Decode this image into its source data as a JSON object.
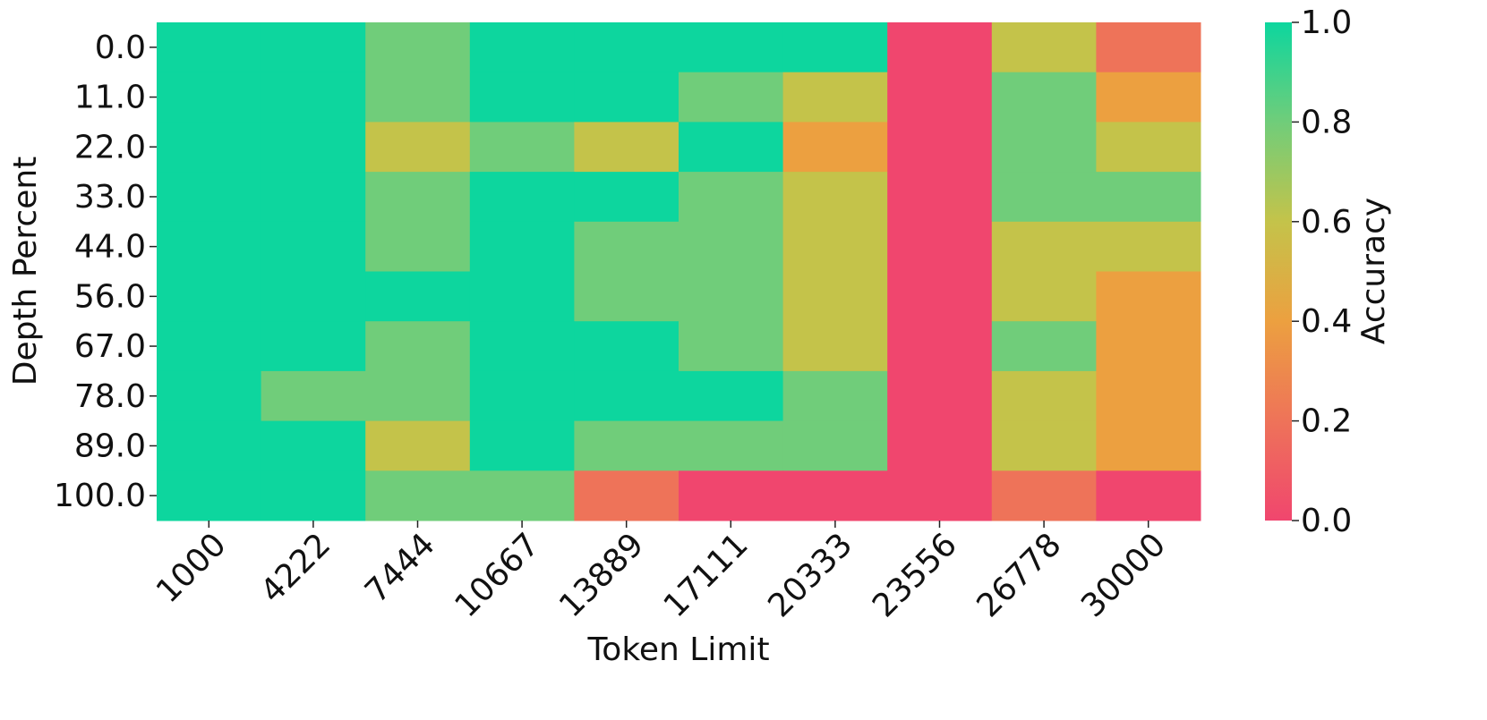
{
  "chart_data": {
    "type": "heatmap",
    "xlabel": "Token Limit",
    "ylabel": "Depth Percent",
    "colorbar_label": "Accuracy",
    "x": [
      "1000",
      "4222",
      "7444",
      "10667",
      "13889",
      "17111",
      "20333",
      "23556",
      "26778",
      "30000"
    ],
    "y": [
      "0.0",
      "11.0",
      "22.0",
      "33.0",
      "44.0",
      "56.0",
      "67.0",
      "78.0",
      "89.0",
      "100.0"
    ],
    "values": [
      [
        1,
        1,
        0.8,
        1,
        1,
        1,
        1,
        0,
        0.6,
        0.2
      ],
      [
        1,
        1,
        0.8,
        1,
        1,
        0.8,
        0.6,
        0,
        0.8,
        0.4
      ],
      [
        1,
        1,
        0.6,
        0.8,
        0.6,
        1,
        0.4,
        0,
        0.8,
        0.6
      ],
      [
        1,
        1,
        0.8,
        1,
        1,
        0.8,
        0.6,
        0,
        0.8,
        0.8
      ],
      [
        1,
        1,
        0.8,
        1,
        0.8,
        0.8,
        0.6,
        0,
        0.6,
        0.6
      ],
      [
        1,
        1,
        1,
        1,
        0.8,
        0.8,
        0.6,
        0,
        0.6,
        0.4
      ],
      [
        1,
        1,
        0.8,
        1,
        1,
        0.8,
        0.6,
        0,
        0.8,
        0.4
      ],
      [
        1,
        0.8,
        0.8,
        1,
        1,
        1,
        0.8,
        0,
        0.6,
        0.4
      ],
      [
        1,
        1,
        0.6,
        1,
        0.8,
        0.8,
        0.8,
        0,
        0.6,
        0.4
      ],
      [
        1,
        1,
        0.8,
        0.8,
        0.2,
        0,
        0,
        0,
        0.2,
        0
      ]
    ],
    "colormap": [
      "#f0466e",
      "#ee7359",
      "#eca040",
      "#c4c34a",
      "#70cd7a",
      "#0dd69e"
    ],
    "zlim": [
      0,
      1
    ],
    "zticks": [
      {
        "value": 0,
        "label": "0.0"
      },
      0.2,
      0.4,
      0.6,
      0.8,
      {
        "value": 1,
        "label": "1.0"
      }
    ]
  }
}
